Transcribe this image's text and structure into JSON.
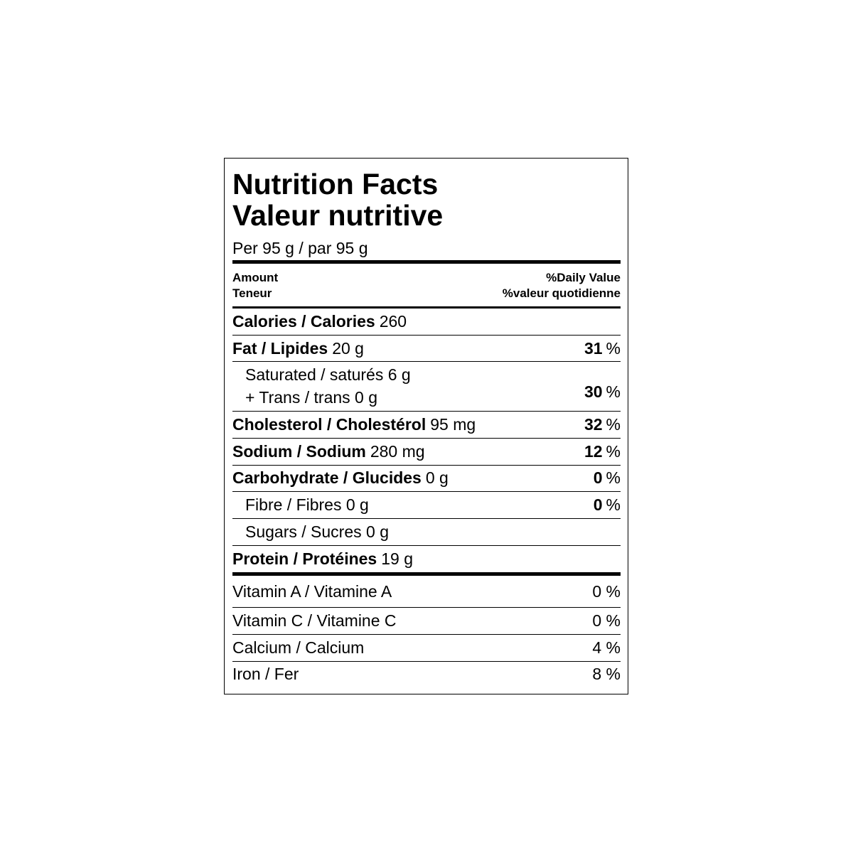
{
  "title": {
    "en": "Nutrition Facts",
    "fr": "Valeur nutritive"
  },
  "serving": "Per 95 g / par 95 g",
  "header": {
    "amount": "Amount",
    "amount_fr": "Teneur",
    "daily_value": "%Daily Value",
    "daily_value_fr": "%valeur quotidienne"
  },
  "nutrients": [
    {
      "name": "Calories / Calories",
      "amount": "260"
    },
    {
      "name": "Fat / Lipides",
      "amount": "20 g",
      "dv": "31",
      "unit": "%"
    },
    {
      "lines": [
        "Saturated / saturés 6 g",
        "+ Trans / trans 0 g"
      ],
      "dv": "30",
      "unit": "%"
    },
    {
      "name": "Cholesterol / Cholestérol",
      "amount": "95 mg",
      "dv": "32",
      "unit": "%"
    },
    {
      "name": "Sodium / Sodium",
      "amount": "280 mg",
      "dv": "12",
      "unit": "%"
    },
    {
      "name": "Carbohydrate / Glucides",
      "amount": "0 g",
      "dv": "0",
      "unit": "%"
    },
    {
      "sub": "Fibre / Fibres 0 g",
      "dv": "0",
      "unit": "%"
    },
    {
      "sub": "Sugars / Sucres 0 g"
    },
    {
      "name": "Protein / Protéines",
      "amount": "19 g"
    }
  ],
  "vitamins": [
    {
      "name": "Vitamin A / Vitamine A",
      "dv": "0 %"
    },
    {
      "name": "Vitamin C / Vitamine C",
      "dv": "0 %"
    },
    {
      "name": "Calcium / Calcium",
      "dv": "4 %"
    },
    {
      "name": "Iron / Fer",
      "dv": "8 %"
    }
  ]
}
